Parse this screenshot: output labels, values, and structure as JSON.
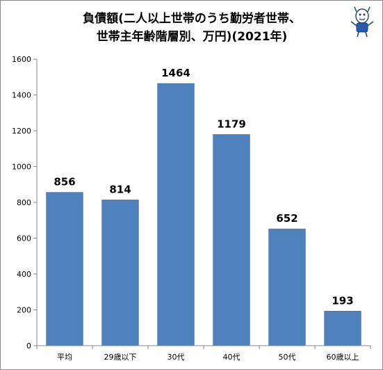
{
  "chart_data": {
    "type": "bar",
    "title_lines": [
      "負債額(二人以上世帯のうち勤労者世帯、",
      "世帯主年齢階層別、万円)(2021年)"
    ],
    "categories": [
      "平均",
      "29歳以下",
      "30代",
      "40代",
      "50代",
      "60歳以上"
    ],
    "values": [
      856,
      814,
      1464,
      1179,
      652,
      193
    ],
    "data_labels": [
      "856",
      "814",
      "1464",
      "1179",
      "652",
      "193"
    ],
    "y_ticks": [
      "0",
      "200",
      "400",
      "600",
      "800",
      "1000",
      "1200",
      "1400",
      "1600"
    ],
    "ylim": [
      0,
      1600
    ],
    "grid": false,
    "legend": "none",
    "colors": {
      "bar": "#4f81bd",
      "bar_edge": "#3f6fa8",
      "axis": "#868686"
    }
  },
  "logo": {
    "icon": "mascot-logo-icon"
  }
}
